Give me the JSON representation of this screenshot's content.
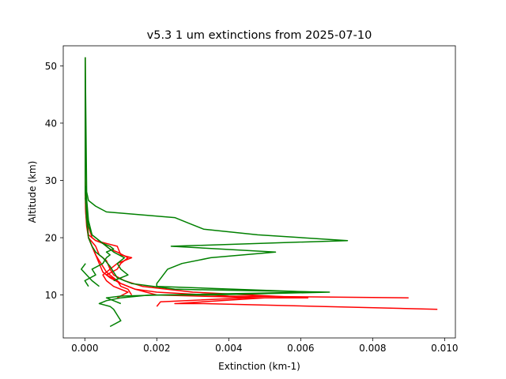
{
  "chart_data": {
    "type": "line",
    "title": "v5.3 1 um extinctions from 2025-07-10",
    "xlabel": "Extinction (km-1)",
    "ylabel": "Altitude (km)",
    "xlim": [
      -0.0006,
      0.0103
    ],
    "ylim": [
      2.5,
      53.5
    ],
    "xticks": [
      0.0,
      0.002,
      0.004,
      0.006,
      0.008,
      0.01
    ],
    "xtick_labels": [
      "0.000",
      "0.002",
      "0.004",
      "0.006",
      "0.008",
      "0.010"
    ],
    "yticks": [
      10,
      20,
      30,
      40,
      50
    ],
    "ytick_labels": [
      "10",
      "20",
      "30",
      "40",
      "50"
    ],
    "grid": false,
    "colors": {
      "red": "#ff0000",
      "green": "#008000"
    },
    "series": [
      {
        "color": "#ff0000",
        "x": [
          0.0098,
          0.0033,
          0.0025,
          0.005,
          0.002,
          0.0014,
          0.001,
          0.0008,
          0.0006,
          0.0005,
          0.0004,
          0.0003,
          0.0002,
          0.0001,
          5e-05,
          2e-05,
          1e-05,
          1e-05,
          1e-05
        ],
        "y": [
          7.5,
          8.5,
          8.5,
          9.5,
          10.0,
          11.0,
          12.0,
          13.0,
          14.0,
          15.0,
          16.0,
          17.0,
          18.5,
          20.0,
          22.0,
          25.0,
          28.0,
          35.0,
          51.5
        ]
      },
      {
        "color": "#ff0000",
        "x": [
          0.009,
          0.004,
          0.002,
          0.0014,
          0.001,
          0.0007,
          0.0005,
          0.0004,
          0.0003,
          0.0002,
          0.0001,
          3e-05,
          1e-05,
          1e-05
        ],
        "y": [
          9.5,
          9.8,
          10.5,
          11.0,
          12.0,
          13.0,
          14.0,
          15.5,
          17.0,
          18.5,
          20.0,
          24.0,
          30.0,
          51.5
        ]
      },
      {
        "color": "#ff0000",
        "x": [
          0.002,
          0.0021,
          0.0045,
          0.0062,
          0.003,
          0.0016,
          0.0011,
          0.0008,
          0.0007,
          0.0006,
          0.0004,
          0.0003,
          0.0001,
          3e-05,
          1e-05
        ],
        "y": [
          8.0,
          8.8,
          9.5,
          9.5,
          10.5,
          11.5,
          12.5,
          13.5,
          14.5,
          16.0,
          17.0,
          18.5,
          20.0,
          24.0,
          30.0
        ]
      },
      {
        "color": "#ff0000",
        "x": [
          0.0013,
          0.0012,
          0.001,
          0.0009,
          0.0006,
          0.0009,
          0.001,
          0.0012,
          0.0009,
          0.0007,
          0.0005,
          0.0003,
          0.0002,
          0.0001,
          2e-05
        ],
        "y": [
          10.0,
          11.0,
          11.5,
          12.5,
          13.5,
          14.5,
          15.5,
          16.5,
          17.5,
          18.0,
          19.0,
          19.5,
          20.0,
          22.0,
          27.0
        ]
      },
      {
        "color": "#ff0000",
        "x": [
          0.0009,
          0.0012,
          0.0008,
          0.0006,
          0.0005,
          0.0007,
          0.0009,
          0.0013,
          0.001,
          0.0009,
          0.0006,
          0.0003,
          0.0001,
          2e-05
        ],
        "y": [
          9.5,
          10.5,
          11.5,
          12.5,
          13.5,
          14.5,
          15.5,
          16.5,
          17.0,
          18.5,
          19.0,
          19.5,
          20.5,
          26.0
        ]
      },
      {
        "color": "#008000",
        "x": [
          0.0007,
          0.001,
          0.0009,
          0.0008,
          0.0007,
          0.0004,
          0.0006,
          0.001,
          0.0018,
          0.0025,
          0.0034,
          0.0068,
          0.0025,
          0.0013,
          0.0009,
          0.0008,
          0.0007,
          0.0005,
          0.0003,
          0.0002,
          0.0001,
          5e-05,
          1e-05,
          1e-05
        ],
        "y": [
          4.5,
          5.5,
          6.5,
          7.5,
          8.0,
          8.5,
          9.0,
          9.5,
          10.0,
          10.0,
          10.0,
          10.5,
          11.0,
          12.0,
          13.0,
          14.0,
          15.0,
          16.5,
          17.5,
          18.5,
          20.0,
          23.0,
          28.0,
          51.5
        ]
      },
      {
        "color": "#008000",
        "x": [
          0.001,
          0.0008,
          0.0006,
          0.001,
          0.0021,
          0.0064,
          0.002,
          0.002,
          0.0023,
          0.0027,
          0.0035,
          0.0053,
          0.0024,
          0.0073,
          0.0048,
          0.0033,
          0.0029,
          0.0025,
          0.0006,
          0.0003,
          0.0001,
          5e-05,
          1e-05
        ],
        "y": [
          8.5,
          9.0,
          9.5,
          9.8,
          10.0,
          10.5,
          11.5,
          12.0,
          14.5,
          15.5,
          16.5,
          17.5,
          18.5,
          19.5,
          20.5,
          21.5,
          22.5,
          23.5,
          24.5,
          25.5,
          26.5,
          28.0,
          51.5
        ]
      },
      {
        "color": "#008000",
        "x": [
          0.0001,
          0.0,
          0.0003,
          0.0002,
          0.0005,
          0.0006,
          0.0007,
          0.0006,
          0.0008,
          0.0007,
          0.0005,
          0.0004,
          0.0002,
          0.0001,
          2e-05
        ],
        "y": [
          11.5,
          12.5,
          13.5,
          14.5,
          15.5,
          16.5,
          17.0,
          17.5,
          18.0,
          18.5,
          19.0,
          19.5,
          20.5,
          23.0,
          29.0
        ]
      },
      {
        "color": "#008000",
        "x": [
          0.0008,
          0.0012,
          0.001,
          0.0009,
          0.0011,
          0.0008,
          0.0006,
          0.0004,
          0.0002,
          0.0001,
          1e-05
        ],
        "y": [
          12.5,
          13.5,
          14.5,
          15.5,
          16.5,
          17.5,
          18.5,
          19.5,
          20.5,
          22.0,
          27.0
        ]
      },
      {
        "color": "#008000",
        "x": [
          2e-05,
          -0.0001,
          5e-05,
          0.0002,
          0.0004
        ],
        "y": [
          15.5,
          14.5,
          13.5,
          12.5,
          11.5
        ]
      }
    ]
  }
}
